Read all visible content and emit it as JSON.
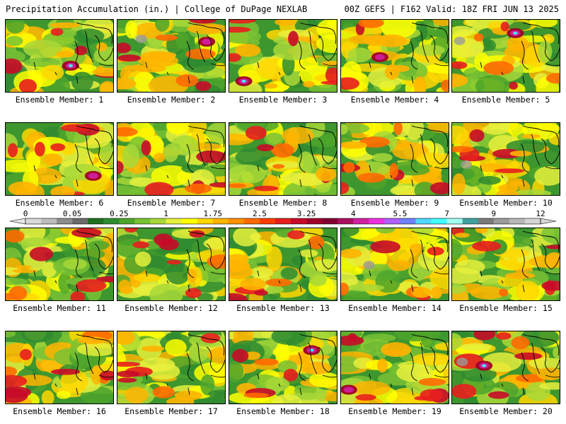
{
  "header": {
    "left": "Precipitation Accumulation (in.) | College of DuPage NEXLAB",
    "right": "00Z GEFS | F162 Valid: 18Z FRI JUN 13 2025"
  },
  "panels": [
    {
      "label": "Ensemble Member: 1"
    },
    {
      "label": "Ensemble Member: 2"
    },
    {
      "label": "Ensemble Member: 3"
    },
    {
      "label": "Ensemble Member: 4"
    },
    {
      "label": "Ensemble Member: 5"
    },
    {
      "label": "Ensemble Member: 6"
    },
    {
      "label": "Ensemble Member: 7"
    },
    {
      "label": "Ensemble Member: 8"
    },
    {
      "label": "Ensemble Member: 9"
    },
    {
      "label": "Ensemble Member: 10"
    },
    {
      "label": "Ensemble Member: 11"
    },
    {
      "label": "Ensemble Member: 12"
    },
    {
      "label": "Ensemble Member: 13"
    },
    {
      "label": "Ensemble Member: 14"
    },
    {
      "label": "Ensemble Member: 15"
    },
    {
      "label": "Ensemble Member: 16"
    },
    {
      "label": "Ensemble Member: 17"
    },
    {
      "label": "Ensemble Member: 18"
    },
    {
      "label": "Ensemble Member: 19"
    },
    {
      "label": "Ensemble Member: 20"
    }
  ],
  "colorbar": {
    "labels": [
      "0",
      "0.05",
      "0.25",
      "1",
      "1.75",
      "2.5",
      "3.25",
      "4",
      "5.5",
      "7",
      "9",
      "12"
    ],
    "colors": [
      "#d8d8d8",
      "#bcbcbc",
      "#8c8c8c",
      "#6a6a6a",
      "#1e6f1e",
      "#2f8b2f",
      "#4ca52c",
      "#79c234",
      "#a8d838",
      "#e6f03c",
      "#ffff00",
      "#ffd700",
      "#ffb400",
      "#ff9000",
      "#ff6a00",
      "#ff3c00",
      "#e81e1e",
      "#c80a28",
      "#a00028",
      "#820030",
      "#aa1060",
      "#d020a0",
      "#ee30e0",
      "#b060ff",
      "#7080ff",
      "#50d8ff",
      "#40ffff",
      "#a0fff0",
      "#40a0a0",
      "#7a7a7a",
      "#9a9a9a",
      "#b8b8b8",
      "#d4d4d4"
    ]
  }
}
